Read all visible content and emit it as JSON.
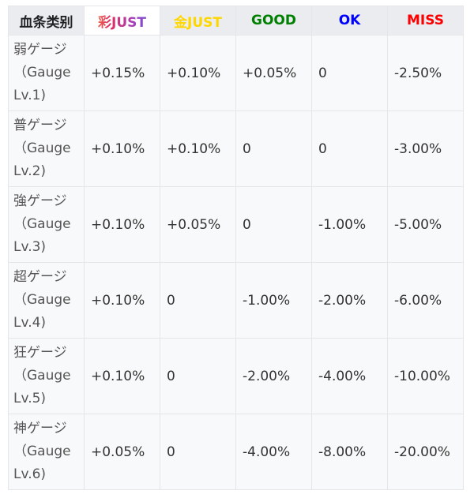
{
  "headers": [
    {
      "text": "血条类别",
      "color": "#202122"
    },
    {
      "text": "彩JUST",
      "color": "rainbow"
    },
    {
      "text": "金JUST",
      "color": "#ffd700"
    },
    {
      "text": "GOOD",
      "color": "#008000"
    },
    {
      "text": "OK",
      "color": "#0000ff"
    },
    {
      "text": "MISS",
      "color": "#ff0000"
    }
  ],
  "rows": [
    {
      "name": "弱ゲージ",
      "sub": "（Gauge Lv.1)",
      "values": [
        "+0.15%",
        "+0.10%",
        "+0.05%",
        "0",
        "-2.50%"
      ]
    },
    {
      "name": "普ゲージ",
      "sub": "（Gauge Lv.2)",
      "values": [
        "+0.10%",
        "+0.10%",
        "0",
        "0",
        "-3.00%"
      ]
    },
    {
      "name": "強ゲージ",
      "sub": "（Gauge Lv.3)",
      "values": [
        "+0.10%",
        "+0.05%",
        "0",
        "-1.00%",
        "-5.00%"
      ]
    },
    {
      "name": "超ゲージ",
      "sub": "（Gauge Lv.4)",
      "values": [
        "+0.10%",
        "0",
        "-1.00%",
        "-2.00%",
        "-6.00%"
      ]
    },
    {
      "name": "狂ゲージ",
      "sub": "（Gauge Lv.5)",
      "values": [
        "+0.10%",
        "0",
        "-2.00%",
        "-4.00%",
        "-10.00%"
      ]
    },
    {
      "name": "神ゲージ",
      "sub": "（Gauge Lv.6)",
      "values": [
        "+0.05%",
        "0",
        "-4.00%",
        "-8.00%",
        "-20.00%"
      ]
    }
  ]
}
